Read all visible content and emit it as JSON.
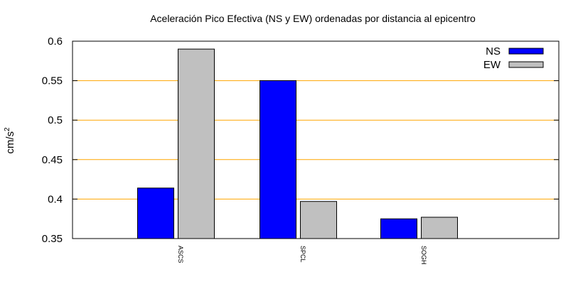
{
  "chart_data": {
    "type": "bar",
    "title": "Aceleración Pico Efectiva (NS y EW) ordenadas por distancia al epicentro",
    "ylabel_base": "cm/s",
    "ylabel_sup": "2",
    "xlabel": "",
    "categories": [
      "ASCS",
      "SPCL",
      "SOGH"
    ],
    "series": [
      {
        "name": "NS",
        "values": [
          0.414,
          0.55,
          0.375
        ],
        "color": "#0000ff"
      },
      {
        "name": "EW",
        "values": [
          0.59,
          0.397,
          0.377
        ],
        "color": "#c0c0c0"
      }
    ],
    "ylim": [
      0.35,
      0.6
    ],
    "yticks": [
      0.35,
      0.4,
      0.45,
      0.5,
      0.55,
      0.6
    ],
    "ytick_labels": [
      "0.35",
      "0.4",
      "0.45",
      "0.5",
      "0.55",
      "0.6"
    ],
    "grid": {
      "y": true,
      "color": "#ffa500"
    },
    "legend": "top-right"
  }
}
